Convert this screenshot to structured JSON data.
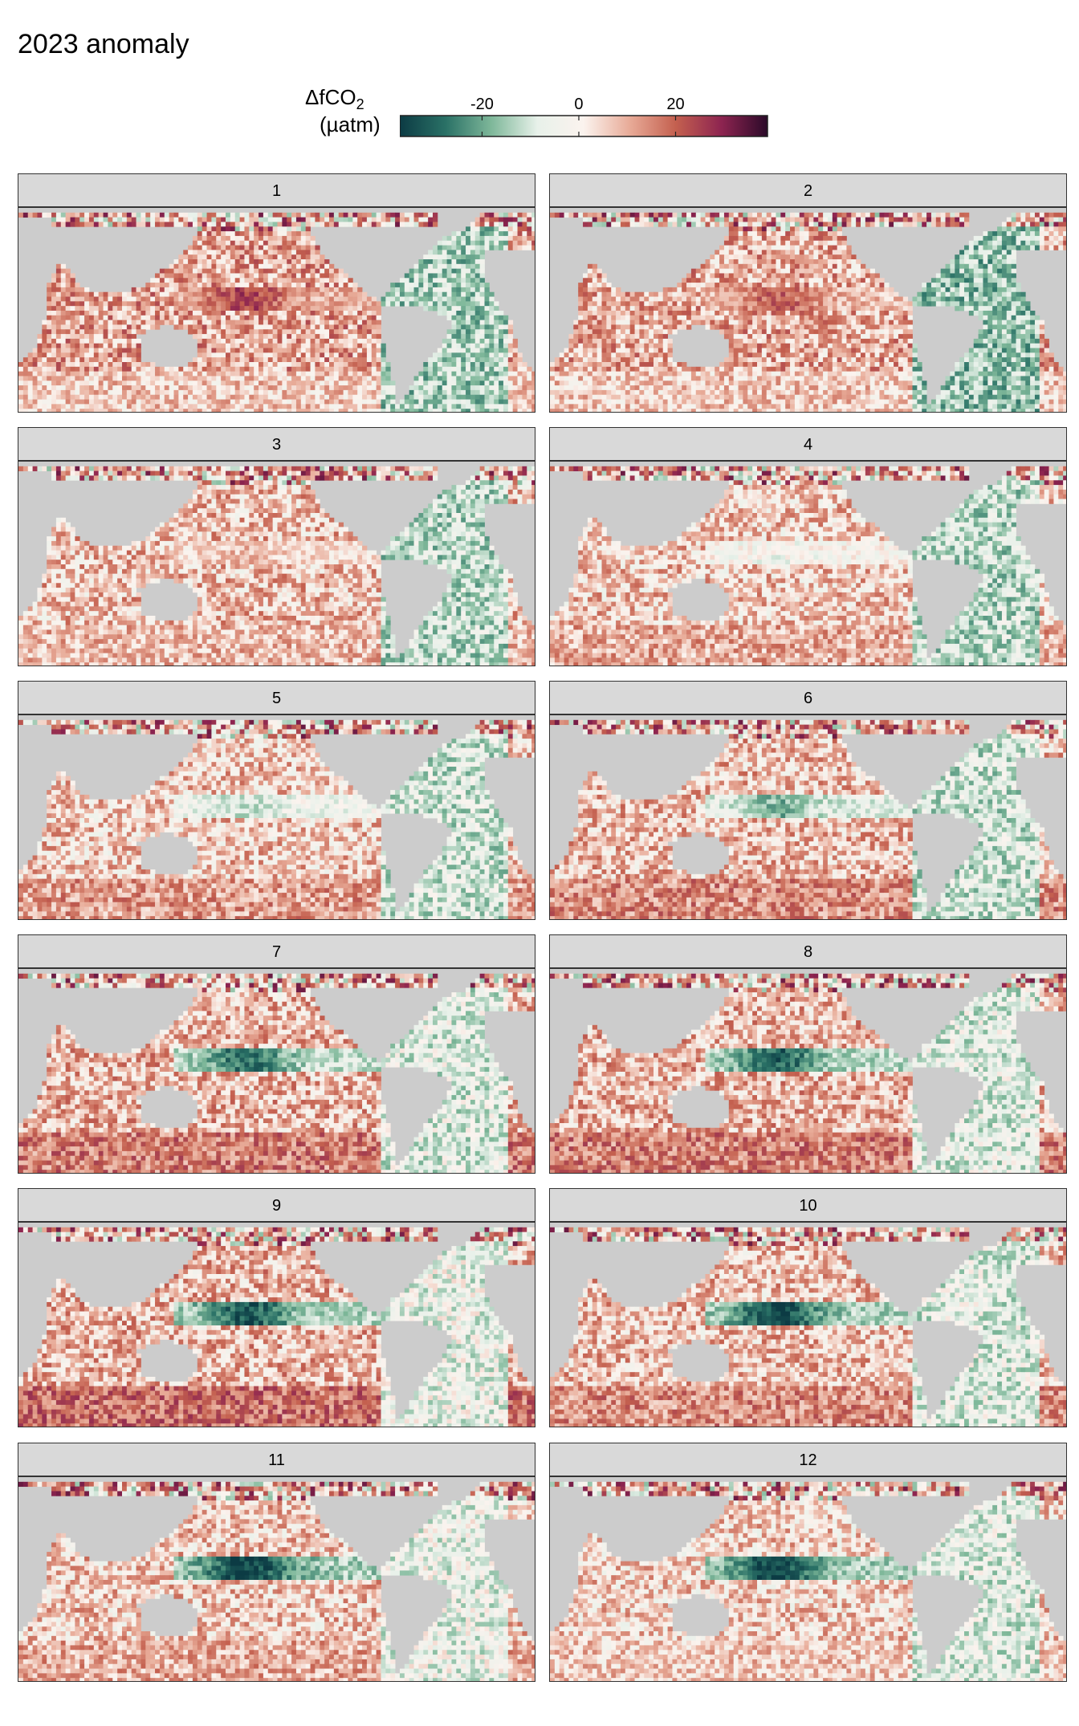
{
  "title": "2023 anomaly",
  "legend": {
    "title_main": "ΔfCO",
    "title_sub": "2",
    "units": "(µatm)",
    "ticks": [
      -20,
      0,
      20
    ],
    "tick_labels": [
      "-20",
      "0",
      "20"
    ],
    "range": [
      -37,
      39
    ],
    "colors": [
      "#0c3b44",
      "#2a7166",
      "#7fb89a",
      "#e8f1ea",
      "#fbf3ee",
      "#e8ab98",
      "#c4604f",
      "#8d2450",
      "#2b0a29"
    ],
    "land_color": "#cccccc",
    "missing_color": "#ffffff"
  },
  "chart_data": {
    "type": "heatmap",
    "description_of_layout": "",
    "panels": [
      {
        "month": "1",
        "label": "1"
      },
      {
        "month": "2",
        "label": "2"
      },
      {
        "month": "3",
        "label": "3"
      },
      {
        "month": "4",
        "label": "4"
      },
      {
        "month": "5",
        "label": "5"
      },
      {
        "month": "6",
        "label": "6"
      },
      {
        "month": "7",
        "label": "7"
      },
      {
        "month": "8",
        "label": "8"
      },
      {
        "month": "9",
        "label": "9"
      },
      {
        "month": "10",
        "label": "10"
      },
      {
        "month": "11",
        "label": "11"
      },
      {
        "month": "12",
        "label": "12"
      }
    ],
    "value_range": [
      -37,
      39
    ],
    "equatorial_pacific_anomaly": [
      24,
      20,
      8,
      -4,
      -10,
      -18,
      -28,
      -30,
      -32,
      -34,
      -36,
      -35
    ],
    "subtropical_pacific_anomaly": [
      18,
      16,
      12,
      10,
      10,
      12,
      14,
      14,
      14,
      12,
      10,
      8
    ],
    "southern_ocean_anomaly": [
      6,
      6,
      8,
      10,
      12,
      14,
      16,
      16,
      18,
      14,
      10,
      6
    ],
    "atlantic_anomaly": [
      -14,
      -16,
      -12,
      -12,
      -10,
      -10,
      -8,
      -8,
      -6,
      -8,
      -6,
      -8
    ]
  }
}
